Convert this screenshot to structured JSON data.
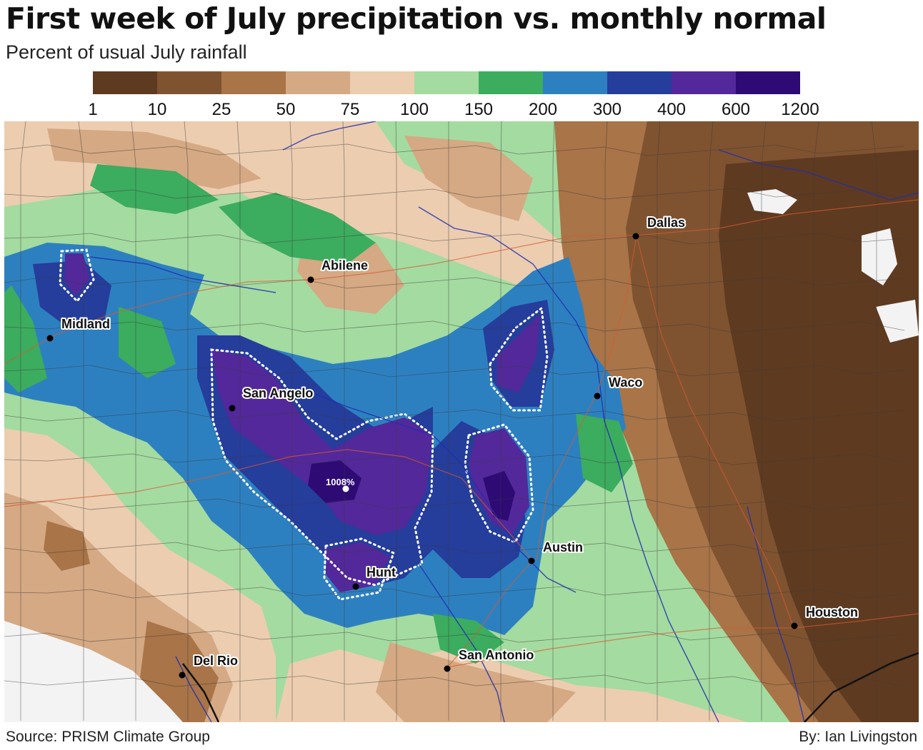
{
  "title": "First week of July precipitation vs. monthly normal",
  "subtitle": "Percent of usual July rainfall",
  "legend": {
    "ticks": [
      "1",
      "10",
      "25",
      "50",
      "75",
      "100",
      "150",
      "200",
      "300",
      "400",
      "600",
      "1200"
    ],
    "colors": [
      "#5e3a20",
      "#7f5330",
      "#a87448",
      "#d4a983",
      "#eccdb0",
      "#a4dba0",
      "#3cac5e",
      "#2d80c0",
      "#253d9b",
      "#53289a",
      "#2e0a74"
    ]
  },
  "cities": [
    {
      "name": "Dallas"
    },
    {
      "name": "Abilene"
    },
    {
      "name": "Midland"
    },
    {
      "name": "San Angelo"
    },
    {
      "name": "Waco"
    },
    {
      "name": "Austin"
    },
    {
      "name": "Hunt"
    },
    {
      "name": "Houston"
    },
    {
      "name": "San Antonio"
    },
    {
      "name": "Del Rio"
    }
  ],
  "max_value_label": "1008%",
  "source": "Source: PRISM Climate Group",
  "byline": "By: Ian Livingston"
}
